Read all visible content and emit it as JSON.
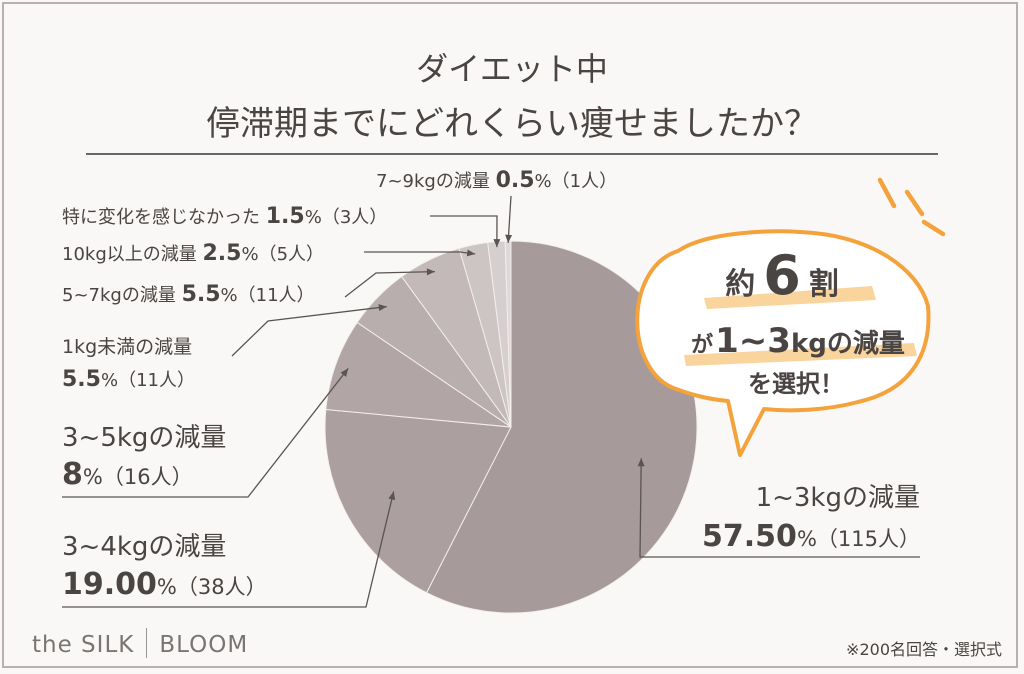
{
  "header": {
    "title_line1": "ダイエット中",
    "title_line2": "停滞期までにどれくらい痩せましたか？"
  },
  "callout": {
    "line1_prefix": "約",
    "line1_number": "6",
    "line1_suffix": "割",
    "line2_prefix": "が",
    "line2_emph": "1~3",
    "line2_suffix": "kgの減量",
    "line3": "を選択！",
    "accent_color": "#f4a23c"
  },
  "chart_data": {
    "type": "pie",
    "slices": [
      {
        "label": "1~3kgの減量",
        "percent_text": "57.50",
        "count_text": "（115人）",
        "value": 57.5,
        "color": "#a69a9a"
      },
      {
        "label": "3~4kgの減量",
        "percent_text": "19.00",
        "count_text": "（38人）",
        "value": 19.0,
        "color": "#ab9f9f"
      },
      {
        "label": "3~5kgの減量",
        "percent_text": "8",
        "count_text": "（16人）",
        "value": 8.0,
        "color": "#b1a5a5"
      },
      {
        "label": "1kg未満の減量",
        "percent_text": "5.5",
        "count_text": "（11人）",
        "value": 5.5,
        "color": "#b9aeae"
      },
      {
        "label": "5~7kgの減量",
        "percent_text": "5.5",
        "count_text": "（11人）",
        "value": 5.5,
        "color": "#c3b9b9"
      },
      {
        "label": "10kg以上の減量",
        "percent_text": "2.5",
        "count_text": "（5人）",
        "value": 2.5,
        "color": "#cdc4c4"
      },
      {
        "label": "特に変化を感じなかった",
        "percent_text": "1.5",
        "count_text": "（3人）",
        "value": 1.5,
        "color": "#d6cfcf"
      },
      {
        "label": "7~9kgの減量",
        "percent_text": "0.5",
        "count_text": "（1人）",
        "value": 0.5,
        "color": "#ded8d8"
      }
    ],
    "percent_sign": "%",
    "slice_colors": [
      "#a69a9a",
      "#ab9f9f",
      "#b1a5a5",
      "#b9aeae",
      "#c3b9b9",
      "#cdc4c4",
      "#d6cfcf",
      "#ded8d8"
    ]
  },
  "footer": {
    "brand_left": "the SILK",
    "brand_right": "BLOOM",
    "note": "※200名回答・選択式"
  }
}
